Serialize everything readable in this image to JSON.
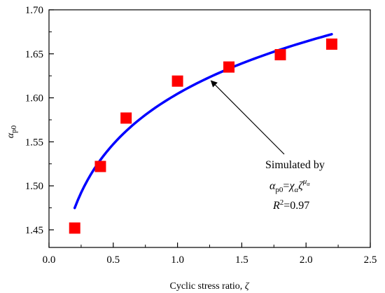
{
  "chart_data": {
    "type": "scatter",
    "title": "",
    "xlabel": {
      "text": "Cyclic stress ratio, ",
      "symbol": "ζ"
    },
    "ylabel": {
      "symbol": "α",
      "subscript": "p0"
    },
    "xlim": [
      0.0,
      2.5
    ],
    "ylim": [
      1.43,
      1.7
    ],
    "x_ticks": [
      "0.0",
      "0.5",
      "1.0",
      "1.5",
      "2.0",
      "2.5"
    ],
    "y_ticks": [
      "1.45",
      "1.50",
      "1.55",
      "1.60",
      "1.65",
      "1.70"
    ],
    "grid": false,
    "series": [
      {
        "kind": "scatter",
        "marker": "square",
        "color": "#ff0000",
        "points": [
          {
            "x": 0.2,
            "y": 1.452
          },
          {
            "x": 0.4,
            "y": 1.522
          },
          {
            "x": 0.6,
            "y": 1.577
          },
          {
            "x": 1.0,
            "y": 1.619
          },
          {
            "x": 1.4,
            "y": 1.635
          },
          {
            "x": 1.8,
            "y": 1.649
          },
          {
            "x": 2.2,
            "y": 1.661
          }
        ]
      },
      {
        "kind": "line",
        "color": "#0000ff",
        "function": "power",
        "coefficient": 1.6046,
        "exponent": 0.05239,
        "x_range": [
          0.2,
          2.2
        ]
      }
    ],
    "annotation": {
      "line1": "Simulated by",
      "formula": {
        "lhs_symbol": "α",
        "lhs_sub": "p0",
        "equals": "=",
        "chi": "χ",
        "chi_sub": "α",
        "zeta": "ζ",
        "exp_mu": "μ",
        "exp_sub": "α"
      },
      "r2": {
        "r": "R",
        "sup": "2",
        "value": "=0.97"
      },
      "arrow_target": {
        "x": 1.25,
        "y": 1.621
      }
    }
  }
}
